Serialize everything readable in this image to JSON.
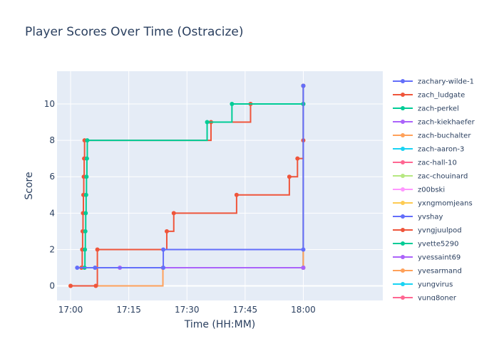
{
  "chart_data": {
    "type": "line",
    "title": "Player Scores Over Time (Ostracize)",
    "xlabel": "Time (HH:MM)",
    "ylabel": "Score",
    "x_units": "minutes after 17:00",
    "xlim": [
      -3.5,
      80.5
    ],
    "ylim": [
      -0.8,
      11.8
    ],
    "x_ticks": [
      {
        "v": 0,
        "label": "17:00"
      },
      {
        "v": 15,
        "label": "17:15"
      },
      {
        "v": 30,
        "label": "17:30"
      },
      {
        "v": 45,
        "label": "17:45"
      },
      {
        "v": 60,
        "label": "18:00"
      }
    ],
    "y_ticks": [
      0,
      2,
      4,
      6,
      8,
      10
    ],
    "grid": true,
    "line_shape": "step-after",
    "legend_position": "right",
    "series": [
      {
        "name": "zachary-wilde-1",
        "color": "#636efa",
        "points": [
          [
            1.7,
            1
          ],
          [
            6.3,
            1
          ],
          [
            23.9,
            1
          ],
          [
            23.9,
            2
          ],
          [
            60,
            2
          ],
          [
            60,
            11
          ]
        ]
      },
      {
        "name": "zach_ludgate",
        "color": "#ef553b",
        "points": [
          [
            0,
            0
          ],
          [
            6.5,
            0
          ],
          [
            6.9,
            2
          ],
          [
            24.8,
            3
          ],
          [
            26.6,
            4
          ],
          [
            42.8,
            5
          ],
          [
            56.4,
            6
          ],
          [
            58.5,
            7
          ],
          [
            60,
            8
          ],
          [
            60,
            11
          ]
        ]
      },
      {
        "name": "zach-perkel",
        "color": "#00cc96",
        "points": [
          [
            3.6,
            1
          ],
          [
            3.7,
            2
          ],
          [
            3.8,
            3
          ],
          [
            3.9,
            4
          ],
          [
            4.0,
            5
          ],
          [
            4.1,
            6
          ],
          [
            4.2,
            7
          ],
          [
            4.3,
            8
          ],
          [
            35.2,
            9
          ],
          [
            41.6,
            10
          ],
          [
            60,
            10
          ]
        ]
      },
      {
        "name": "zach-kiekhaefer",
        "color": "#ab63fa",
        "points": [
          [
            12.7,
            1
          ],
          [
            60,
            1
          ]
        ]
      },
      {
        "name": "zach-buchalter",
        "color": "#ffa15a",
        "points": [
          [
            0,
            0
          ],
          [
            23.8,
            1
          ],
          [
            60,
            1
          ],
          [
            60,
            11
          ]
        ]
      },
      {
        "name": "zach-aaron-3",
        "color": "#19d3f3",
        "points": [
          [
            60,
            1
          ],
          [
            60,
            11
          ]
        ]
      },
      {
        "name": "zac-hall-10",
        "color": "#ff6692",
        "points": [
          [
            60,
            1
          ],
          [
            60,
            11
          ]
        ]
      },
      {
        "name": "zac-chouinard",
        "color": "#b6e880",
        "points": [
          [
            60,
            1
          ],
          [
            60,
            11
          ]
        ]
      },
      {
        "name": "z00bski",
        "color": "#ff97ff",
        "points": [
          [
            60,
            1
          ],
          [
            60,
            11
          ]
        ]
      },
      {
        "name": "yxngmomjeans",
        "color": "#fecb52",
        "points": [
          [
            60,
            1
          ],
          [
            60,
            11
          ]
        ]
      },
      {
        "name": "yvshay",
        "color": "#636efa",
        "points": [
          [
            60,
            1
          ],
          [
            60,
            11
          ]
        ]
      },
      {
        "name": "yvngjuulpod",
        "color": "#ef553b",
        "points": [
          [
            2.8,
            1
          ],
          [
            3.0,
            2
          ],
          [
            3.1,
            3
          ],
          [
            3.2,
            4
          ],
          [
            3.3,
            5
          ],
          [
            3.4,
            6
          ],
          [
            3.5,
            7
          ],
          [
            3.6,
            8
          ],
          [
            36.2,
            9
          ],
          [
            46.4,
            10
          ],
          [
            60,
            10
          ]
        ]
      },
      {
        "name": "yvette5290",
        "color": "#00cc96",
        "points": [
          [
            60,
            1
          ],
          [
            60,
            11
          ]
        ]
      },
      {
        "name": "yvessaint69",
        "color": "#ab63fa",
        "points": [
          [
            60,
            1
          ],
          [
            60,
            11
          ]
        ]
      },
      {
        "name": "yvesarmand",
        "color": "#ffa15a",
        "points": [
          [
            60,
            1
          ],
          [
            60,
            11
          ]
        ]
      },
      {
        "name": "yungvirus",
        "color": "#19d3f3",
        "points": [
          [
            60,
            1
          ],
          [
            60,
            11
          ]
        ]
      },
      {
        "name": "yung8oner",
        "color": "#ff6692",
        "points": [
          [
            60,
            1
          ],
          [
            60,
            11
          ]
        ]
      }
    ]
  }
}
